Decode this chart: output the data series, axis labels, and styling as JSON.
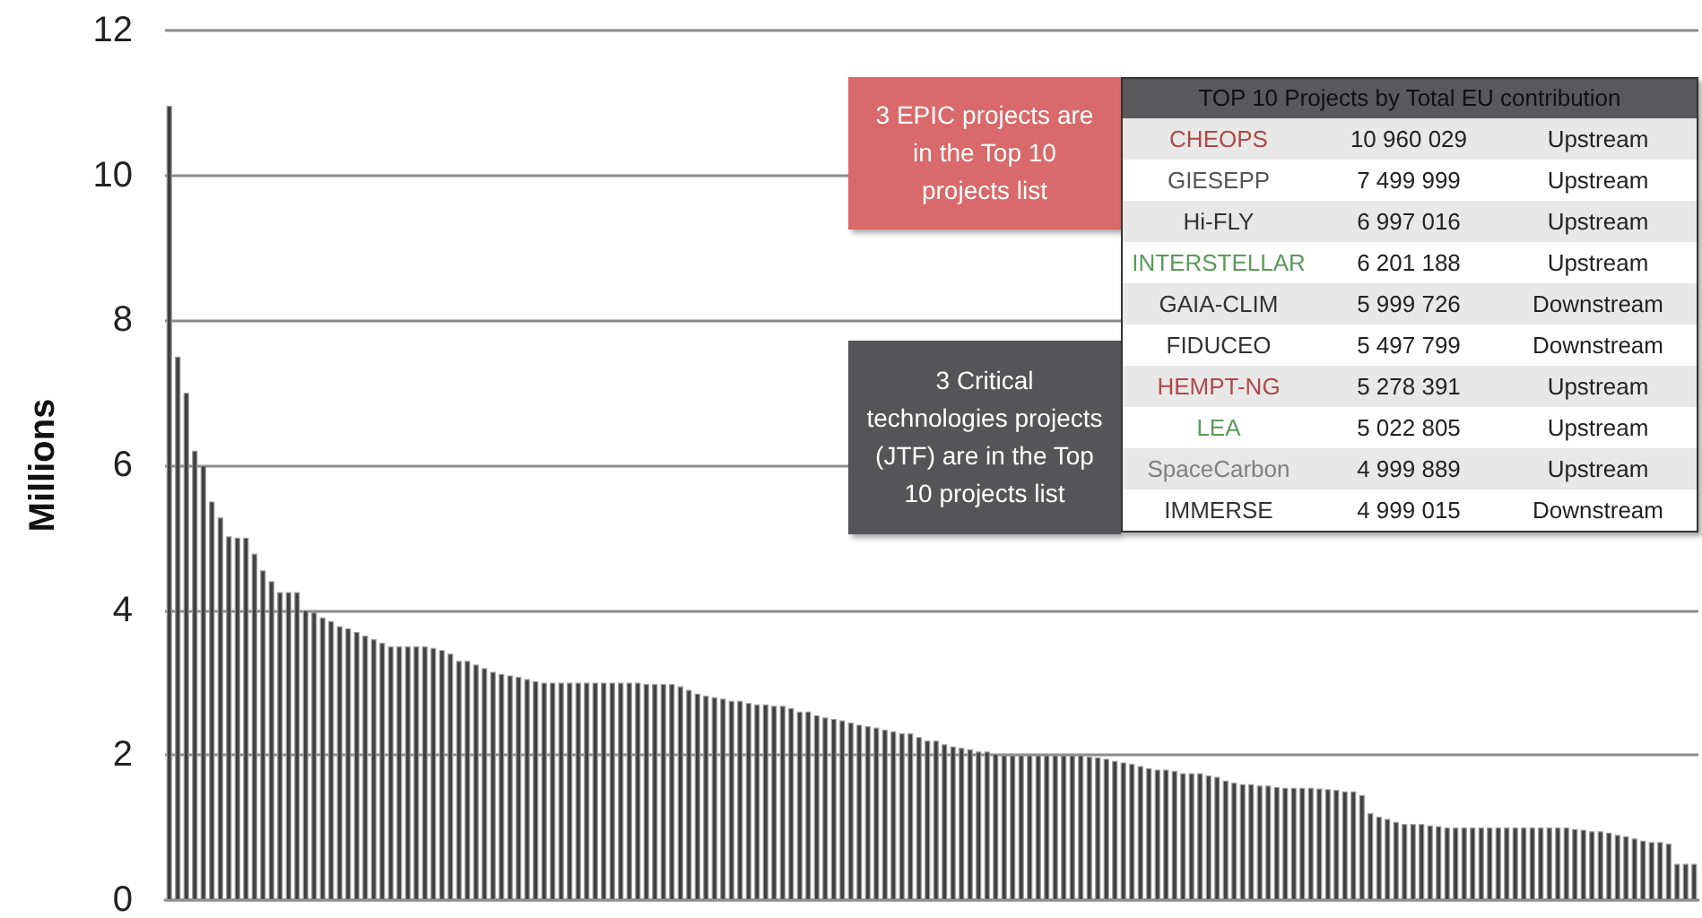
{
  "chart_data": {
    "type": "bar",
    "ylabel": "Millions",
    "color": "#404040",
    "ylim": [
      0,
      12
    ],
    "yticks": [
      0,
      2,
      4,
      6,
      8,
      10,
      12
    ],
    "grid": "y",
    "tick_labels": "y",
    "categories": [
      null,
      null,
      null,
      null,
      null,
      null,
      null,
      null,
      null,
      null,
      null,
      null,
      null,
      null,
      null,
      null,
      null,
      null,
      null,
      null,
      null,
      null,
      null,
      null,
      null,
      null,
      null,
      null,
      null,
      null,
      null,
      null,
      null,
      null,
      null,
      null,
      null,
      null,
      null,
      null,
      null,
      null,
      null,
      null,
      null,
      null,
      null,
      null,
      null,
      null,
      null,
      null,
      null,
      null,
      null,
      null,
      null,
      null,
      null,
      null,
      null,
      null,
      null,
      null,
      null,
      null,
      null,
      null,
      null,
      null,
      null,
      null,
      null,
      null,
      null,
      null,
      null,
      null,
      null,
      null,
      null,
      null,
      null,
      null,
      null,
      null,
      null,
      null,
      null,
      null,
      null,
      null,
      null,
      null,
      null,
      null,
      null,
      null,
      null,
      null,
      null,
      null,
      null,
      null,
      null,
      null,
      null,
      null,
      null,
      null,
      null,
      null,
      null,
      null,
      null,
      null,
      null,
      null,
      null,
      null,
      null,
      null,
      null,
      null,
      null,
      null,
      null,
      null,
      null,
      null,
      null,
      null,
      null,
      null,
      null,
      null,
      null,
      null,
      null,
      null,
      null,
      null,
      null,
      null,
      null,
      null,
      null,
      null,
      null,
      null,
      null,
      null,
      null,
      null,
      null,
      null,
      null,
      null,
      null,
      null,
      null,
      null,
      null,
      null,
      null,
      null,
      null,
      null,
      null,
      null,
      null,
      null,
      null,
      null,
      null,
      null,
      null,
      null,
      null,
      null
    ],
    "values": [
      10.96,
      7.5,
      7.0,
      6.2,
      6.0,
      5.5,
      5.28,
      5.02,
      5.0,
      5.0,
      4.78,
      4.55,
      4.4,
      4.25,
      4.25,
      4.25,
      4.0,
      3.97,
      3.9,
      3.85,
      3.78,
      3.75,
      3.7,
      3.65,
      3.6,
      3.55,
      3.5,
      3.5,
      3.5,
      3.5,
      3.5,
      3.48,
      3.45,
      3.4,
      3.3,
      3.3,
      3.25,
      3.2,
      3.15,
      3.12,
      3.1,
      3.08,
      3.05,
      3.02,
      3.0,
      3.0,
      3.0,
      3.0,
      3.0,
      3.0,
      3.0,
      3.0,
      3.0,
      3.0,
      3.0,
      3.0,
      2.98,
      2.98,
      2.98,
      2.98,
      2.95,
      2.9,
      2.85,
      2.82,
      2.8,
      2.78,
      2.75,
      2.75,
      2.72,
      2.7,
      2.7,
      2.68,
      2.68,
      2.65,
      2.6,
      2.6,
      2.55,
      2.52,
      2.5,
      2.48,
      2.45,
      2.42,
      2.4,
      2.38,
      2.35,
      2.33,
      2.3,
      2.3,
      2.25,
      2.2,
      2.2,
      2.15,
      2.12,
      2.1,
      2.08,
      2.05,
      2.05,
      2.02,
      2.0,
      2.0,
      2.0,
      2.0,
      2.0,
      2.0,
      2.0,
      2.0,
      2.0,
      2.0,
      1.98,
      1.97,
      1.95,
      1.92,
      1.9,
      1.88,
      1.85,
      1.82,
      1.8,
      1.8,
      1.78,
      1.75,
      1.75,
      1.75,
      1.72,
      1.7,
      1.65,
      1.62,
      1.6,
      1.6,
      1.58,
      1.58,
      1.56,
      1.55,
      1.55,
      1.55,
      1.55,
      1.54,
      1.53,
      1.52,
      1.5,
      1.5,
      1.45,
      1.2,
      1.15,
      1.12,
      1.08,
      1.05,
      1.05,
      1.05,
      1.03,
      1.02,
      1.0,
      1.0,
      1.0,
      1.0,
      1.0,
      1.0,
      1.0,
      1.0,
      1.0,
      1.0,
      1.0,
      1.0,
      1.0,
      1.0,
      1.0,
      0.98,
      0.97,
      0.95,
      0.95,
      0.93,
      0.9,
      0.88,
      0.85,
      0.82,
      0.8,
      0.8,
      0.78,
      0.5,
      0.5,
      0.5
    ],
    "annotations": [
      "3 EPIC projects are in the Top 10 projects list",
      "3 Critical technologies projects (JTF) are in the Top 10 projects list",
      "TOP 10 Projects by Total EU contribution",
      "CHEOPS",
      "10 960 029",
      "Upstream",
      "GIESEPP",
      "7 499 999",
      "Upstream",
      "Hi-FLY",
      "6 997 016",
      "Upstream",
      "INTERSTELLAR",
      "6 201 188",
      "Upstream",
      "GAIA-CLIM",
      "5 999 726",
      "Downstream",
      "FIDUCEO",
      "5 497 799",
      "Downstream",
      "HEMPT-NG",
      "5 278 391",
      "Upstream",
      "LEA",
      "5 022 805",
      "Upstream",
      "SpaceCarbon",
      "4 999 889",
      "Upstream",
      "IMMERSE",
      "4 999 015",
      "Downstream"
    ]
  }
}
